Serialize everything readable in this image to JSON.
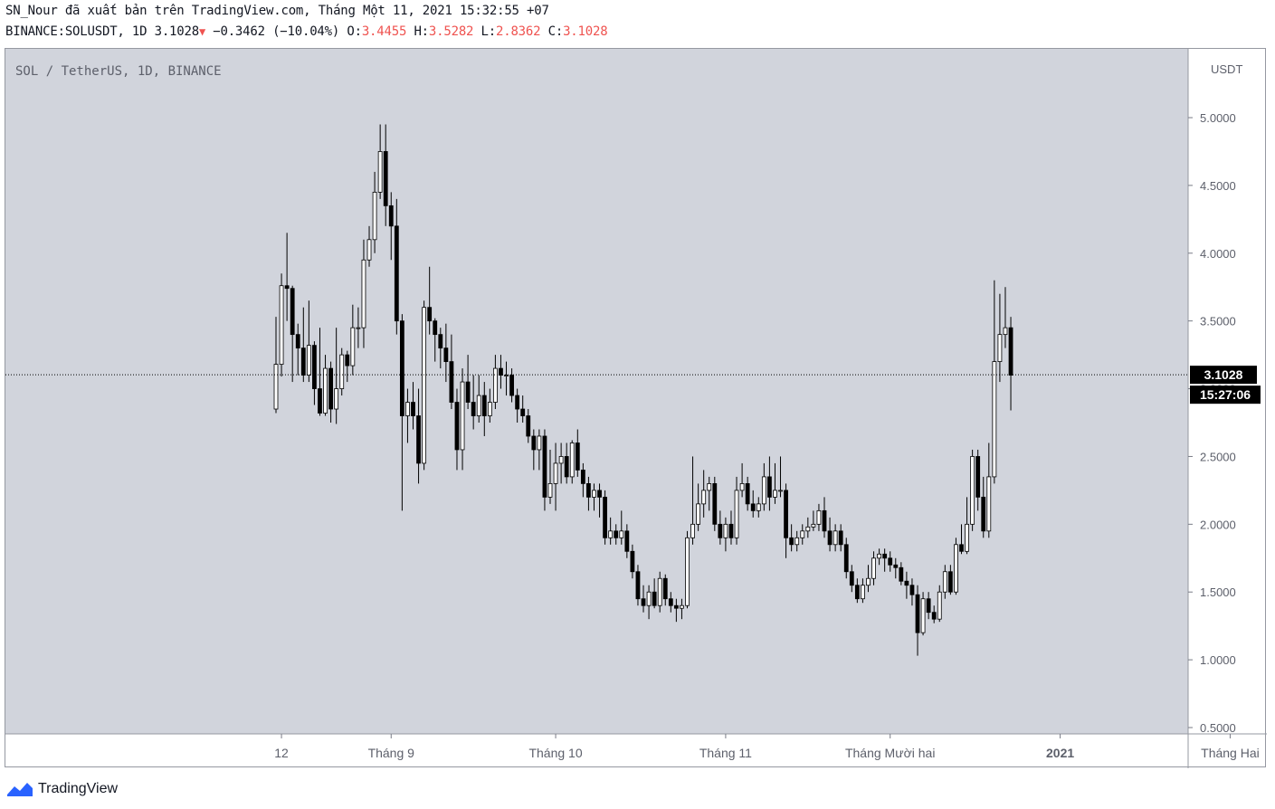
{
  "header": {
    "line1": "SN_Nour đã xuất bản trên TradingView.com, Tháng Một 11, 2021 15:32:55 +07",
    "symbol": "BINANCE:SOLUSDT, 1D",
    "last": "3.1028",
    "change": "−0.3462 (−10.04%)",
    "o_label": "O:",
    "o": "3.4455",
    "h_label": "H:",
    "h": "3.5282",
    "l_label": "L:",
    "l": "2.8362",
    "c_label": "C:",
    "c": "3.1028"
  },
  "brand": "TradingView",
  "colors": {
    "background": "#d1d4dc",
    "up": "#ffffff",
    "down": "#000000",
    "wick": "#000000",
    "change": "#ef5350"
  },
  "chart_data": {
    "type": "candlestick",
    "title": "SOL / TetherUS, 1D, BINANCE",
    "ylabel": "USDT",
    "ylim": [
      0.5,
      5.0
    ],
    "yticks": [
      "5.0000",
      "4.5000",
      "4.0000",
      "3.5000",
      "3.0000",
      "2.5000",
      "2.0000",
      "1.5000",
      "1.0000",
      "0.5000"
    ],
    "xticks": [
      "12",
      "Tháng 9",
      "Tháng 10",
      "Tháng 11",
      "Tháng Mười hai",
      "2021",
      "Tháng Hai"
    ],
    "last_price": "3.1028",
    "countdown": "15:27:06",
    "first_date": "2020-08-11",
    "candles": [
      [
        2.85,
        3.18,
        3.53,
        2.82
      ],
      [
        3.18,
        3.76,
        3.85,
        3.09
      ],
      [
        3.76,
        3.74,
        4.15,
        3.5
      ],
      [
        3.74,
        3.4,
        3.76,
        3.05
      ],
      [
        3.4,
        3.3,
        3.48,
        3.1
      ],
      [
        3.3,
        3.1,
        3.6,
        3.05
      ],
      [
        3.1,
        3.32,
        3.65,
        3.05
      ],
      [
        3.32,
        3.0,
        3.35,
        2.88
      ],
      [
        3.0,
        2.82,
        3.45,
        2.8
      ],
      [
        2.82,
        3.15,
        3.25,
        2.8
      ],
      [
        3.15,
        2.85,
        3.2,
        2.75
      ],
      [
        2.85,
        3.0,
        3.45,
        2.74
      ],
      [
        3.0,
        3.25,
        3.3,
        2.95
      ],
      [
        3.25,
        3.17,
        3.28,
        3.05
      ],
      [
        3.17,
        3.45,
        3.62,
        3.1
      ],
      [
        3.45,
        3.45,
        3.6,
        3.3
      ],
      [
        3.45,
        3.95,
        4.1,
        3.3
      ],
      [
        3.95,
        4.1,
        4.2,
        3.9
      ],
      [
        4.1,
        4.45,
        4.6,
        4.0
      ],
      [
        4.45,
        4.75,
        4.95,
        4.4
      ],
      [
        4.75,
        4.35,
        4.95,
        4.2
      ],
      [
        4.35,
        4.2,
        4.45,
        3.95
      ],
      [
        4.2,
        3.5,
        4.4,
        3.4
      ],
      [
        3.5,
        2.8,
        3.55,
        2.1
      ],
      [
        2.8,
        2.9,
        3.0,
        2.6
      ],
      [
        2.9,
        2.8,
        3.05,
        2.7
      ],
      [
        2.8,
        2.45,
        3.0,
        2.3
      ],
      [
        2.45,
        3.6,
        3.65,
        2.4
      ],
      [
        3.6,
        3.5,
        3.9,
        3.4
      ],
      [
        3.5,
        3.4,
        3.52,
        3.2
      ],
      [
        3.4,
        3.3,
        3.45,
        3.15
      ],
      [
        3.3,
        3.2,
        3.48,
        3.05
      ],
      [
        3.2,
        2.9,
        3.4,
        2.85
      ],
      [
        2.9,
        2.55,
        3.0,
        2.4
      ],
      [
        2.55,
        3.05,
        3.15,
        2.4
      ],
      [
        3.05,
        2.9,
        3.25,
        2.85
      ],
      [
        2.9,
        2.8,
        3.1,
        2.7
      ],
      [
        2.8,
        2.95,
        3.1,
        2.75
      ],
      [
        2.95,
        2.8,
        3.05,
        2.65
      ],
      [
        2.8,
        2.9,
        3.0,
        2.75
      ],
      [
        2.9,
        3.15,
        3.25,
        2.85
      ],
      [
        3.15,
        3.1,
        3.25,
        3.0
      ],
      [
        3.1,
        3.1,
        3.2,
        2.95
      ],
      [
        3.1,
        2.95,
        3.15,
        2.9
      ],
      [
        2.95,
        2.85,
        3.0,
        2.75
      ],
      [
        2.85,
        2.8,
        2.95,
        2.75
      ],
      [
        2.8,
        2.65,
        2.85,
        2.6
      ],
      [
        2.65,
        2.55,
        2.7,
        2.4
      ],
      [
        2.55,
        2.65,
        2.7,
        2.4
      ],
      [
        2.65,
        2.2,
        2.7,
        2.1
      ],
      [
        2.2,
        2.3,
        2.55,
        2.15
      ],
      [
        2.3,
        2.45,
        2.6,
        2.1
      ],
      [
        2.45,
        2.5,
        2.6,
        2.3
      ],
      [
        2.5,
        2.35,
        2.6,
        2.3
      ],
      [
        2.35,
        2.6,
        2.62,
        2.3
      ],
      [
        2.6,
        2.4,
        2.7,
        2.35
      ],
      [
        2.4,
        2.3,
        2.45,
        2.2
      ],
      [
        2.3,
        2.2,
        2.35,
        2.1
      ],
      [
        2.2,
        2.25,
        2.3,
        2.1
      ],
      [
        2.25,
        2.2,
        2.3,
        2.05
      ],
      [
        2.2,
        1.9,
        2.25,
        1.85
      ],
      [
        1.9,
        1.95,
        2.05,
        1.85
      ],
      [
        1.95,
        1.9,
        2.0,
        1.85
      ],
      [
        1.9,
        1.95,
        2.1,
        1.85
      ],
      [
        1.95,
        1.8,
        2.0,
        1.75
      ],
      [
        1.8,
        1.65,
        1.85,
        1.6
      ],
      [
        1.65,
        1.45,
        1.7,
        1.4
      ],
      [
        1.45,
        1.4,
        1.55,
        1.35
      ],
      [
        1.4,
        1.5,
        1.55,
        1.3
      ],
      [
        1.5,
        1.4,
        1.6,
        1.38
      ],
      [
        1.4,
        1.6,
        1.65,
        1.35
      ],
      [
        1.6,
        1.45,
        1.63,
        1.4
      ],
      [
        1.45,
        1.4,
        1.5,
        1.35
      ],
      [
        1.4,
        1.38,
        1.45,
        1.28
      ],
      [
        1.38,
        1.4,
        1.45,
        1.3
      ],
      [
        1.4,
        1.9,
        1.95,
        1.38
      ],
      [
        1.9,
        2.0,
        2.5,
        1.85
      ],
      [
        2.0,
        2.15,
        2.3,
        1.95
      ],
      [
        2.15,
        2.25,
        2.4,
        2.05
      ],
      [
        2.25,
        2.3,
        2.35,
        2.1
      ],
      [
        2.3,
        2.0,
        2.35,
        1.95
      ],
      [
        2.0,
        1.9,
        2.1,
        1.85
      ],
      [
        1.9,
        2.0,
        2.05,
        1.8
      ],
      [
        2.0,
        1.9,
        2.1,
        1.85
      ],
      [
        1.9,
        2.25,
        2.35,
        1.85
      ],
      [
        2.25,
        2.3,
        2.45,
        2.2
      ],
      [
        2.3,
        2.15,
        2.35,
        2.1
      ],
      [
        2.15,
        2.1,
        2.25,
        2.05
      ],
      [
        2.1,
        2.15,
        2.2,
        2.05
      ],
      [
        2.15,
        2.35,
        2.45,
        2.1
      ],
      [
        2.35,
        2.2,
        2.5,
        2.1
      ],
      [
        2.2,
        2.25,
        2.45,
        2.15
      ],
      [
        2.25,
        2.25,
        2.5,
        2.2
      ],
      [
        2.25,
        1.9,
        2.3,
        1.75
      ],
      [
        1.9,
        1.85,
        2.0,
        1.8
      ],
      [
        1.85,
        1.9,
        1.95,
        1.8
      ],
      [
        1.9,
        1.95,
        2.0,
        1.85
      ],
      [
        1.95,
        1.98,
        2.05,
        1.9
      ],
      [
        1.98,
        2.0,
        2.1,
        1.95
      ],
      [
        2.0,
        2.1,
        2.15,
        1.95
      ],
      [
        2.1,
        1.95,
        2.2,
        1.9
      ],
      [
        1.95,
        1.85,
        2.05,
        1.8
      ],
      [
        1.85,
        1.95,
        2.0,
        1.8
      ],
      [
        1.95,
        1.85,
        2.0,
        1.8
      ],
      [
        1.85,
        1.65,
        1.9,
        1.6
      ],
      [
        1.65,
        1.55,
        1.7,
        1.5
      ],
      [
        1.55,
        1.45,
        1.6,
        1.42
      ],
      [
        1.45,
        1.55,
        1.6,
        1.42
      ],
      [
        1.55,
        1.6,
        1.7,
        1.5
      ],
      [
        1.6,
        1.75,
        1.8,
        1.55
      ],
      [
        1.75,
        1.78,
        1.82,
        1.7
      ],
      [
        1.78,
        1.75,
        1.82,
        1.65
      ],
      [
        1.75,
        1.7,
        1.8,
        1.65
      ],
      [
        1.7,
        1.68,
        1.75,
        1.6
      ],
      [
        1.68,
        1.58,
        1.72,
        1.55
      ],
      [
        1.58,
        1.55,
        1.65,
        1.45
      ],
      [
        1.55,
        1.48,
        1.6,
        1.4
      ],
      [
        1.48,
        1.2,
        1.55,
        1.03
      ],
      [
        1.2,
        1.45,
        1.5,
        1.18
      ],
      [
        1.45,
        1.35,
        1.5,
        1.3
      ],
      [
        1.35,
        1.3,
        1.4,
        1.27
      ],
      [
        1.3,
        1.5,
        1.55,
        1.28
      ],
      [
        1.5,
        1.65,
        1.7,
        1.45
      ],
      [
        1.65,
        1.5,
        1.7,
        1.48
      ],
      [
        1.5,
        1.85,
        1.9,
        1.48
      ],
      [
        1.85,
        1.8,
        2.0,
        1.78
      ],
      [
        1.8,
        2.0,
        2.2,
        1.78
      ],
      [
        2.0,
        2.5,
        2.55,
        1.95
      ],
      [
        2.5,
        2.2,
        2.55,
        2.1
      ],
      [
        2.2,
        1.95,
        2.35,
        1.9
      ],
      [
        1.95,
        2.35,
        2.6,
        1.9
      ],
      [
        2.35,
        3.2,
        3.8,
        2.3
      ],
      [
        3.2,
        3.4,
        3.7,
        3.05
      ],
      [
        3.4,
        3.45,
        3.75,
        3.3
      ],
      [
        3.45,
        3.1,
        3.53,
        2.84
      ]
    ]
  }
}
